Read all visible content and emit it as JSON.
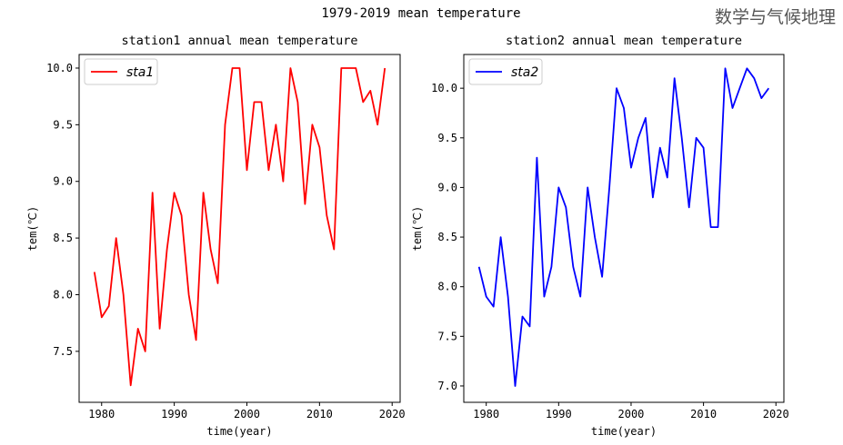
{
  "suptitle": "1979-2019 mean temperature",
  "watermark": "数学与气候地理",
  "chart_data": [
    {
      "type": "line",
      "title": "station1 annual mean temperature",
      "xlabel": "time(year)",
      "ylabel": "tem(℃)",
      "xlim": [
        1976.9,
        2021.1
      ],
      "ylim": [
        7.05,
        10.12
      ],
      "xticks": [
        1980,
        1990,
        2000,
        2010,
        2020
      ],
      "yticks": [
        7.5,
        8.0,
        8.5,
        9.0,
        9.5,
        10.0
      ],
      "legend": "upper-left",
      "color": "#ff0000",
      "series": [
        {
          "name": "sta1",
          "x": [
            1979,
            1980,
            1981,
            1982,
            1983,
            1984,
            1985,
            1986,
            1987,
            1988,
            1989,
            1990,
            1991,
            1992,
            1993,
            1994,
            1995,
            1996,
            1997,
            1998,
            1999,
            2000,
            2001,
            2002,
            2003,
            2004,
            2005,
            2006,
            2007,
            2008,
            2009,
            2010,
            2011,
            2012,
            2013,
            2014,
            2015,
            2016,
            2017,
            2018,
            2019
          ],
          "values": [
            8.2,
            7.8,
            7.9,
            8.5,
            8.0,
            7.2,
            7.7,
            7.5,
            8.9,
            7.7,
            8.4,
            8.9,
            8.7,
            8.0,
            7.6,
            8.9,
            8.4,
            8.1,
            9.5,
            10.0,
            10.0,
            9.1,
            9.7,
            9.7,
            9.1,
            9.5,
            9.0,
            10.0,
            9.7,
            8.8,
            9.5,
            9.3,
            8.7,
            8.4,
            10.0,
            10.0,
            10.0,
            9.7,
            9.8,
            9.5,
            10.0
          ]
        }
      ]
    },
    {
      "type": "line",
      "title": "station2 annual mean temperature",
      "xlabel": "time(year)",
      "ylabel": "tem(℃)",
      "xlim": [
        1976.9,
        2021.1
      ],
      "ylim": [
        6.835,
        10.34
      ],
      "xticks": [
        1980,
        1990,
        2000,
        2010,
        2020
      ],
      "yticks": [
        7.0,
        7.5,
        8.0,
        8.5,
        9.0,
        9.5,
        10.0
      ],
      "legend": "upper-left",
      "color": "#0000ff",
      "series": [
        {
          "name": "sta2",
          "x": [
            1979,
            1980,
            1981,
            1982,
            1983,
            1984,
            1985,
            1986,
            1987,
            1988,
            1989,
            1990,
            1991,
            1992,
            1993,
            1994,
            1995,
            1996,
            1997,
            1998,
            1999,
            2000,
            2001,
            2002,
            2003,
            2004,
            2005,
            2006,
            2007,
            2008,
            2009,
            2010,
            2011,
            2012,
            2013,
            2014,
            2015,
            2016,
            2017,
            2018,
            2019
          ],
          "values": [
            8.2,
            7.9,
            7.8,
            8.5,
            7.9,
            7.0,
            7.7,
            7.6,
            9.3,
            7.9,
            8.2,
            9.0,
            8.8,
            8.2,
            7.9,
            9.0,
            8.5,
            8.1,
            9.0,
            10.0,
            9.8,
            9.2,
            9.5,
            9.7,
            8.9,
            9.4,
            9.1,
            10.1,
            9.5,
            8.8,
            9.5,
            9.4,
            8.6,
            8.6,
            10.2,
            9.8,
            10.0,
            10.2,
            10.1,
            9.9,
            10.0
          ]
        }
      ]
    }
  ]
}
